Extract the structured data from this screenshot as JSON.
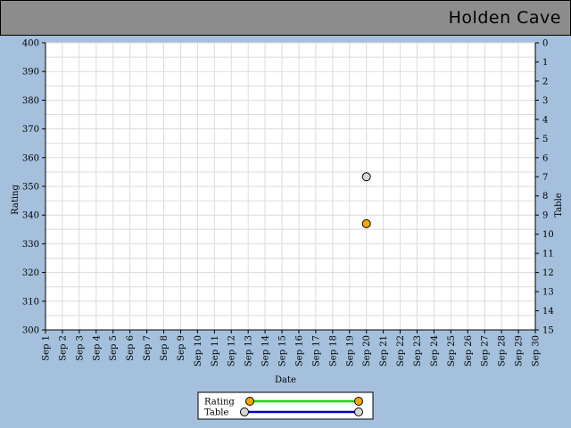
{
  "header": {
    "title": "Holden Cave"
  },
  "chart_data": {
    "type": "scatter",
    "xlabel": "Date",
    "ylabel": "Rating",
    "y2label": "Table",
    "x_ticks": [
      "Sep 1",
      "Sep 2",
      "Sep 3",
      "Sep 4",
      "Sep 5",
      "Sep 6",
      "Sep 7",
      "Sep 8",
      "Sep 9",
      "Sep 10",
      "Sep 11",
      "Sep 12",
      "Sep 13",
      "Sep 14",
      "Sep 15",
      "Sep 16",
      "Sep 17",
      "Sep 18",
      "Sep 19",
      "Sep 20",
      "Sep 21",
      "Sep 22",
      "Sep 23",
      "Sep 24",
      "Sep 25",
      "Sep 26",
      "Sep 27",
      "Sep 28",
      "Sep 29",
      "Sep 30"
    ],
    "ylim": [
      300,
      400
    ],
    "y_ticks": [
      300,
      310,
      320,
      330,
      340,
      350,
      360,
      370,
      380,
      390,
      400
    ],
    "y2lim": [
      0,
      15
    ],
    "y2_inverted": true,
    "y2_ticks": [
      0,
      1,
      2,
      3,
      4,
      5,
      6,
      7,
      8,
      9,
      10,
      11,
      12,
      13,
      14,
      15
    ],
    "grid": true,
    "legend_position": "bottom-center",
    "series": [
      {
        "name": "Rating",
        "axis": "left",
        "marker_color": "#f5a800",
        "line_color": "#00dd00",
        "points": [
          {
            "x": "Sep 20",
            "y": 337
          }
        ]
      },
      {
        "name": "Table",
        "axis": "right",
        "marker_color": "#d8d8d8",
        "line_color": "#0000cc",
        "points": [
          {
            "x": "Sep 20",
            "y": 7
          }
        ]
      }
    ]
  }
}
